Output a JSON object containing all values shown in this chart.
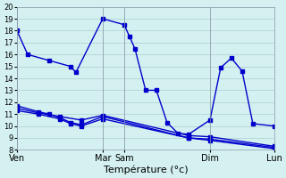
{
  "xlabel": "Température (°c)",
  "bg_color": "#d4f0f0",
  "grid_color": "#b0cece",
  "line_color": "#0000cc",
  "ylim": [
    8,
    20
  ],
  "xlim": [
    0,
    24
  ],
  "day_labels": [
    "Ven",
    "Mar",
    "Sam",
    "Dim",
    "Lun"
  ],
  "day_positions": [
    0,
    8,
    10,
    18,
    24
  ],
  "line1_x": [
    0,
    1,
    3,
    5,
    5.5,
    8,
    10,
    10.5,
    11,
    12,
    13,
    14,
    15,
    16,
    18,
    19,
    20,
    21,
    22,
    24
  ],
  "line1_y": [
    18,
    16,
    15.5,
    15,
    14.5,
    19,
    18.5,
    17.5,
    16.5,
    13,
    13,
    10.3,
    9.4,
    9.3,
    10.5,
    14.9,
    15.7,
    14.6,
    10.2,
    10
  ],
  "line2_x": [
    0,
    2,
    3,
    4,
    5,
    6,
    8,
    16,
    18,
    24
  ],
  "line2_y": [
    11.7,
    11.2,
    11.0,
    10.7,
    10.3,
    10.1,
    10.8,
    9.0,
    8.9,
    8.2
  ],
  "line3_x": [
    0,
    2,
    4,
    6,
    8,
    16,
    18,
    24
  ],
  "line3_y": [
    11.5,
    11.1,
    10.8,
    10.5,
    10.9,
    9.2,
    9.1,
    8.3
  ],
  "line4_x": [
    0,
    2,
    4,
    5,
    6,
    8,
    16,
    18,
    24
  ],
  "line4_y": [
    11.3,
    11.0,
    10.6,
    10.2,
    10.0,
    10.6,
    9.0,
    8.8,
    8.1
  ]
}
